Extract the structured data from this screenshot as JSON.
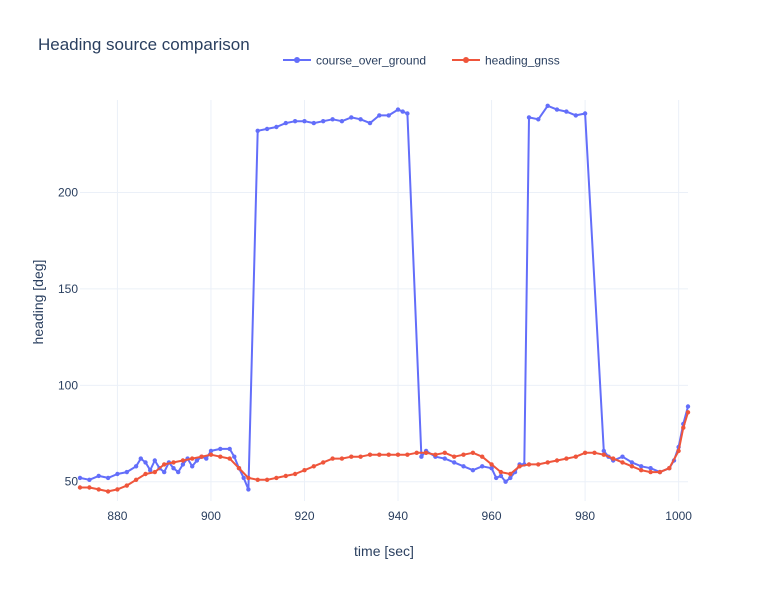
{
  "chart_data": {
    "type": "line",
    "title": "Heading source comparison",
    "xlabel": "time [sec]",
    "ylabel": "heading [deg]",
    "xlim": [
      872,
      1002
    ],
    "ylim": [
      40,
      248
    ],
    "x_ticks": [
      880,
      900,
      920,
      940,
      960,
      980,
      1000
    ],
    "y_ticks": [
      50,
      100,
      150,
      200
    ],
    "grid": true,
    "legend_position": "top-center",
    "series": [
      {
        "name": "course_over_ground",
        "color": "#636efa",
        "points": [
          [
            872,
            52
          ],
          [
            874,
            51
          ],
          [
            876,
            53
          ],
          [
            878,
            52
          ],
          [
            880,
            54
          ],
          [
            882,
            55
          ],
          [
            884,
            58
          ],
          [
            885,
            62
          ],
          [
            886,
            60
          ],
          [
            887,
            56
          ],
          [
            888,
            61
          ],
          [
            889,
            57
          ],
          [
            890,
            55
          ],
          [
            891,
            60
          ],
          [
            892,
            57
          ],
          [
            893,
            55
          ],
          [
            894,
            59
          ],
          [
            895,
            62
          ],
          [
            896,
            58
          ],
          [
            897,
            61
          ],
          [
            898,
            63
          ],
          [
            899,
            62
          ],
          [
            900,
            66
          ],
          [
            902,
            67
          ],
          [
            904,
            67
          ],
          [
            905,
            63
          ],
          [
            906,
            57
          ],
          [
            907,
            52
          ],
          [
            908,
            46
          ],
          [
            910,
            232
          ],
          [
            912,
            233
          ],
          [
            914,
            234
          ],
          [
            916,
            236
          ],
          [
            918,
            237
          ],
          [
            920,
            237
          ],
          [
            922,
            236
          ],
          [
            924,
            237
          ],
          [
            926,
            238
          ],
          [
            928,
            237
          ],
          [
            930,
            239
          ],
          [
            932,
            238
          ],
          [
            934,
            236
          ],
          [
            936,
            240
          ],
          [
            938,
            240
          ],
          [
            940,
            243
          ],
          [
            941,
            242
          ],
          [
            942,
            241
          ],
          [
            945,
            63
          ],
          [
            946,
            66
          ],
          [
            948,
            63
          ],
          [
            950,
            62
          ],
          [
            952,
            60
          ],
          [
            954,
            58
          ],
          [
            956,
            56
          ],
          [
            958,
            58
          ],
          [
            960,
            57
          ],
          [
            961,
            52
          ],
          [
            962,
            53
          ],
          [
            963,
            50
          ],
          [
            964,
            52
          ],
          [
            965,
            55
          ],
          [
            966,
            59
          ],
          [
            967,
            59
          ],
          [
            968,
            239
          ],
          [
            970,
            238
          ],
          [
            972,
            245
          ],
          [
            974,
            243
          ],
          [
            976,
            242
          ],
          [
            978,
            240
          ],
          [
            980,
            241
          ],
          [
            984,
            66
          ],
          [
            985,
            63
          ],
          [
            986,
            61
          ],
          [
            988,
            63
          ],
          [
            990,
            60
          ],
          [
            992,
            58
          ],
          [
            994,
            57
          ],
          [
            996,
            55
          ],
          [
            998,
            57
          ],
          [
            999,
            61
          ],
          [
            1000,
            68
          ],
          [
            1001,
            80
          ],
          [
            1002,
            89
          ]
        ]
      },
      {
        "name": "heading_gnss",
        "color": "#ef553b",
        "points": [
          [
            872,
            47
          ],
          [
            874,
            47
          ],
          [
            876,
            46
          ],
          [
            878,
            45
          ],
          [
            880,
            46
          ],
          [
            882,
            48
          ],
          [
            884,
            51
          ],
          [
            886,
            54
          ],
          [
            888,
            55
          ],
          [
            890,
            59
          ],
          [
            892,
            60
          ],
          [
            894,
            61
          ],
          [
            896,
            62
          ],
          [
            898,
            63
          ],
          [
            900,
            64
          ],
          [
            902,
            63
          ],
          [
            904,
            62
          ],
          [
            906,
            57
          ],
          [
            908,
            52
          ],
          [
            910,
            51
          ],
          [
            912,
            51
          ],
          [
            914,
            52
          ],
          [
            916,
            53
          ],
          [
            918,
            54
          ],
          [
            920,
            56
          ],
          [
            922,
            58
          ],
          [
            924,
            60
          ],
          [
            926,
            62
          ],
          [
            928,
            62
          ],
          [
            930,
            63
          ],
          [
            932,
            63
          ],
          [
            934,
            64
          ],
          [
            936,
            64
          ],
          [
            938,
            64
          ],
          [
            940,
            64
          ],
          [
            942,
            64
          ],
          [
            944,
            65
          ],
          [
            946,
            65
          ],
          [
            948,
            64
          ],
          [
            950,
            65
          ],
          [
            952,
            63
          ],
          [
            954,
            64
          ],
          [
            956,
            65
          ],
          [
            958,
            63
          ],
          [
            960,
            59
          ],
          [
            962,
            55
          ],
          [
            964,
            54
          ],
          [
            966,
            58
          ],
          [
            968,
            59
          ],
          [
            970,
            59
          ],
          [
            972,
            60
          ],
          [
            974,
            61
          ],
          [
            976,
            62
          ],
          [
            978,
            63
          ],
          [
            980,
            65
          ],
          [
            982,
            65
          ],
          [
            984,
            64
          ],
          [
            986,
            62
          ],
          [
            988,
            60
          ],
          [
            990,
            58
          ],
          [
            992,
            56
          ],
          [
            994,
            55
          ],
          [
            996,
            55
          ],
          [
            998,
            57
          ],
          [
            1000,
            66
          ],
          [
            1001,
            78
          ],
          [
            1002,
            86
          ]
        ]
      }
    ]
  }
}
